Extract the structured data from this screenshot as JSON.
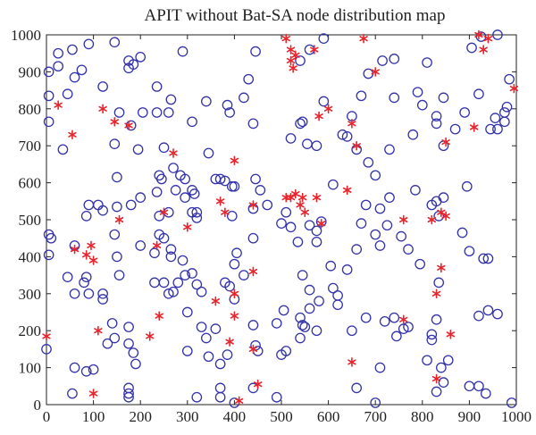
{
  "chart_data": {
    "type": "scatter",
    "title": "APIT without Bat-SA node distribution map",
    "xlabel": "",
    "ylabel": "",
    "xlim": [
      0,
      1000
    ],
    "ylim": [
      0,
      1000
    ],
    "xticks": [
      0,
      100,
      200,
      300,
      400,
      500,
      600,
      700,
      800,
      900,
      1000
    ],
    "yticks": [
      0,
      100,
      200,
      300,
      400,
      500,
      600,
      700,
      800,
      900,
      1000
    ],
    "grid": false,
    "legend": "none",
    "series": [
      {
        "marker": "circle",
        "color": "#3333aa",
        "points": [
          [
            5,
            900
          ],
          [
            25,
            950
          ],
          [
            25,
            915
          ],
          [
            55,
            960
          ],
          [
            90,
            975
          ],
          [
            145,
            980
          ],
          [
            175,
            930
          ],
          [
            200,
            940
          ],
          [
            290,
            955
          ],
          [
            430,
            880
          ],
          [
            445,
            955
          ],
          [
            540,
            930
          ],
          [
            560,
            960
          ],
          [
            590,
            990
          ],
          [
            715,
            930
          ],
          [
            740,
            935
          ],
          [
            810,
            925
          ],
          [
            905,
            965
          ],
          [
            925,
            995
          ],
          [
            960,
            1000
          ],
          [
            5,
            835
          ],
          [
            45,
            840
          ],
          [
            60,
            885
          ],
          [
            75,
            905
          ],
          [
            120,
            860
          ],
          [
            175,
            910
          ],
          [
            185,
            920
          ],
          [
            205,
            790
          ],
          [
            235,
            860
          ],
          [
            265,
            825
          ],
          [
            260,
            790
          ],
          [
            310,
            765
          ],
          [
            340,
            820
          ],
          [
            385,
            810
          ],
          [
            390,
            790
          ],
          [
            420,
            830
          ],
          [
            440,
            760
          ],
          [
            545,
            765
          ],
          [
            590,
            820
          ],
          [
            650,
            780
          ],
          [
            670,
            835
          ],
          [
            685,
            895
          ],
          [
            740,
            830
          ],
          [
            790,
            845
          ],
          [
            830,
            760
          ],
          [
            845,
            830
          ],
          [
            890,
            790
          ],
          [
            920,
            840
          ],
          [
            960,
            745
          ],
          [
            975,
            765
          ],
          [
            980,
            805
          ],
          [
            975,
            790
          ],
          [
            985,
            880
          ],
          [
            5,
            765
          ],
          [
            35,
            690
          ],
          [
            145,
            705
          ],
          [
            155,
            790
          ],
          [
            180,
            755
          ],
          [
            195,
            690
          ],
          [
            235,
            790
          ],
          [
            250,
            695
          ],
          [
            270,
            640
          ],
          [
            285,
            620
          ],
          [
            295,
            610
          ],
          [
            240,
            620
          ],
          [
            245,
            610
          ],
          [
            275,
            580
          ],
          [
            295,
            560
          ],
          [
            310,
            580
          ],
          [
            315,
            570
          ],
          [
            345,
            680
          ],
          [
            360,
            610
          ],
          [
            370,
            610
          ],
          [
            380,
            605
          ],
          [
            395,
            590
          ],
          [
            400,
            590
          ],
          [
            440,
            530
          ],
          [
            520,
            720
          ],
          [
            540,
            760
          ],
          [
            555,
            705
          ],
          [
            575,
            700
          ],
          [
            610,
            595
          ],
          [
            630,
            730
          ],
          [
            640,
            725
          ],
          [
            660,
            690
          ],
          [
            685,
            655
          ],
          [
            700,
            620
          ],
          [
            730,
            690
          ],
          [
            780,
            730
          ],
          [
            800,
            810
          ],
          [
            830,
            780
          ],
          [
            845,
            700
          ],
          [
            870,
            745
          ],
          [
            945,
            745
          ],
          [
            955,
            775
          ],
          [
            150,
            615
          ],
          [
            150,
            535
          ],
          [
            180,
            540
          ],
          [
            200,
            560
          ],
          [
            235,
            575
          ],
          [
            240,
            510
          ],
          [
            260,
            520
          ],
          [
            310,
            520
          ],
          [
            320,
            520
          ],
          [
            320,
            505
          ],
          [
            395,
            510
          ],
          [
            445,
            610
          ],
          [
            455,
            580
          ],
          [
            470,
            540
          ],
          [
            510,
            520
          ],
          [
            560,
            485
          ],
          [
            585,
            495
          ],
          [
            575,
            470
          ],
          [
            575,
            440
          ],
          [
            670,
            490
          ],
          [
            680,
            540
          ],
          [
            710,
            530
          ],
          [
            725,
            485
          ],
          [
            730,
            560
          ],
          [
            785,
            580
          ],
          [
            820,
            540
          ],
          [
            830,
            550
          ],
          [
            835,
            510
          ],
          [
            845,
            560
          ],
          [
            895,
            590
          ],
          [
            5,
            460
          ],
          [
            10,
            450
          ],
          [
            5,
            405
          ],
          [
            60,
            430
          ],
          [
            85,
            510
          ],
          [
            90,
            540
          ],
          [
            110,
            540
          ],
          [
            120,
            525
          ],
          [
            145,
            460
          ],
          [
            150,
            400
          ],
          [
            155,
            350
          ],
          [
            200,
            430
          ],
          [
            230,
            410
          ],
          [
            240,
            460
          ],
          [
            250,
            450
          ],
          [
            265,
            420
          ],
          [
            265,
            400
          ],
          [
            290,
            390
          ],
          [
            295,
            350
          ],
          [
            310,
            355
          ],
          [
            320,
            325
          ],
          [
            380,
            330
          ],
          [
            390,
            320
          ],
          [
            400,
            285
          ],
          [
            400,
            380
          ],
          [
            405,
            410
          ],
          [
            420,
            350
          ],
          [
            440,
            450
          ],
          [
            500,
            490
          ],
          [
            520,
            480
          ],
          [
            535,
            440
          ],
          [
            545,
            350
          ],
          [
            560,
            310
          ],
          [
            580,
            280
          ],
          [
            605,
            375
          ],
          [
            640,
            365
          ],
          [
            660,
            420
          ],
          [
            700,
            460
          ],
          [
            710,
            430
          ],
          [
            755,
            455
          ],
          [
            770,
            420
          ],
          [
            795,
            380
          ],
          [
            835,
            330
          ],
          [
            885,
            465
          ],
          [
            900,
            415
          ],
          [
            930,
            395
          ],
          [
            940,
            395
          ],
          [
            45,
            345
          ],
          [
            60,
            300
          ],
          [
            80,
            330
          ],
          [
            90,
            300
          ],
          [
            120,
            300
          ],
          [
            120,
            285
          ],
          [
            140,
            220
          ],
          [
            145,
            180
          ],
          [
            130,
            165
          ],
          [
            175,
            210
          ],
          [
            175,
            165
          ],
          [
            185,
            140
          ],
          [
            190,
            110
          ],
          [
            230,
            330
          ],
          [
            250,
            330
          ],
          [
            260,
            300
          ],
          [
            270,
            305
          ],
          [
            280,
            330
          ],
          [
            300,
            250
          ],
          [
            330,
            305
          ],
          [
            330,
            210
          ],
          [
            340,
            180
          ],
          [
            360,
            205
          ],
          [
            345,
            130
          ],
          [
            370,
            110
          ],
          [
            385,
            135
          ],
          [
            440,
            215
          ],
          [
            445,
            160
          ],
          [
            450,
            145
          ],
          [
            490,
            220
          ],
          [
            505,
            255
          ],
          [
            540,
            235
          ],
          [
            545,
            215
          ],
          [
            560,
            260
          ],
          [
            575,
            200
          ],
          [
            610,
            315
          ],
          [
            620,
            295
          ],
          [
            650,
            200
          ],
          [
            680,
            235
          ],
          [
            720,
            225
          ],
          [
            740,
            235
          ],
          [
            760,
            205
          ],
          [
            810,
            120
          ],
          [
            820,
            175
          ],
          [
            820,
            190
          ],
          [
            830,
            230
          ],
          [
            840,
            100
          ],
          [
            855,
            120
          ],
          [
            920,
            240
          ],
          [
            940,
            255
          ],
          [
            960,
            245
          ],
          [
            85,
            345
          ],
          [
            0,
            150
          ],
          [
            60,
            100
          ],
          [
            85,
            90
          ],
          [
            100,
            95
          ],
          [
            175,
            45
          ],
          [
            175,
            30
          ],
          [
            175,
            20
          ],
          [
            320,
            20
          ],
          [
            370,
            45
          ],
          [
            370,
            20
          ],
          [
            400,
            5
          ],
          [
            440,
            45
          ],
          [
            490,
            20
          ],
          [
            500,
            135
          ],
          [
            510,
            145
          ],
          [
            540,
            180
          ],
          [
            550,
            210
          ],
          [
            660,
            45
          ],
          [
            700,
            5
          ],
          [
            710,
            100
          ],
          [
            745,
            185
          ],
          [
            770,
            210
          ],
          [
            830,
            35
          ],
          [
            845,
            60
          ],
          [
            900,
            50
          ],
          [
            920,
            50
          ],
          [
            935,
            30
          ],
          [
            990,
            5
          ],
          [
            55,
            30
          ],
          [
            300,
            145
          ],
          [
            620,
            270
          ]
        ]
      },
      {
        "marker": "asterisk",
        "color": "#e8242c",
        "points": [
          [
            25,
            810
          ],
          [
            55,
            730
          ],
          [
            120,
            800
          ],
          [
            145,
            765
          ],
          [
            175,
            755
          ],
          [
            270,
            680
          ],
          [
            400,
            660
          ],
          [
            510,
            990
          ],
          [
            520,
            960
          ],
          [
            520,
            930
          ],
          [
            530,
            945
          ],
          [
            525,
            910
          ],
          [
            570,
            960
          ],
          [
            600,
            800
          ],
          [
            580,
            780
          ],
          [
            650,
            760
          ],
          [
            660,
            700
          ],
          [
            675,
            990
          ],
          [
            700,
            900
          ],
          [
            850,
            710
          ],
          [
            910,
            750
          ],
          [
            920,
            1000
          ],
          [
            930,
            960
          ],
          [
            940,
            990
          ],
          [
            995,
            855
          ],
          [
            155,
            500
          ],
          [
            95,
            430
          ],
          [
            85,
            405
          ],
          [
            100,
            390
          ],
          [
            60,
            420
          ],
          [
            250,
            520
          ],
          [
            300,
            480
          ],
          [
            370,
            550
          ],
          [
            380,
            520
          ],
          [
            440,
            540
          ],
          [
            510,
            560
          ],
          [
            530,
            570
          ],
          [
            540,
            540
          ],
          [
            550,
            520
          ],
          [
            575,
            560
          ],
          [
            585,
            490
          ],
          [
            640,
            580
          ],
          [
            760,
            500
          ],
          [
            820,
            500
          ],
          [
            840,
            520
          ],
          [
            850,
            510
          ],
          [
            235,
            430
          ],
          [
            440,
            360
          ],
          [
            360,
            280
          ],
          [
            400,
            300
          ],
          [
            0,
            185
          ],
          [
            110,
            200
          ],
          [
            220,
            185
          ],
          [
            240,
            240
          ],
          [
            390,
            170
          ],
          [
            400,
            240
          ],
          [
            440,
            150
          ],
          [
            450,
            55
          ],
          [
            650,
            115
          ],
          [
            760,
            230
          ],
          [
            830,
            70
          ],
          [
            840,
            370
          ],
          [
            830,
            300
          ],
          [
            860,
            190
          ],
          [
            100,
            30
          ],
          [
            410,
            10
          ],
          [
            520,
            560
          ],
          [
            545,
            560
          ]
        ]
      }
    ]
  }
}
